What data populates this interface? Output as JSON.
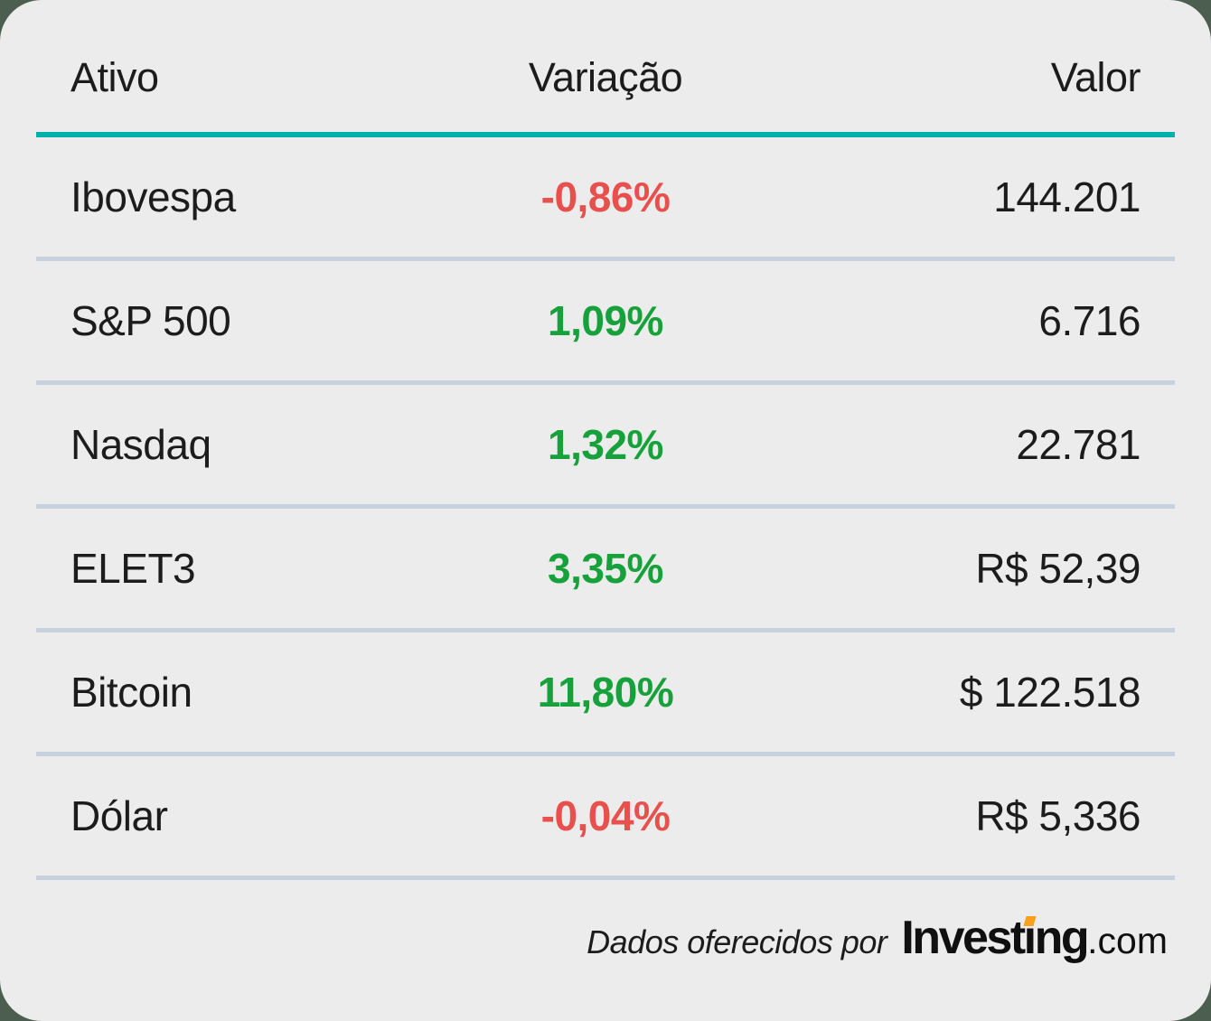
{
  "chart_data": {
    "type": "table",
    "columns": [
      "Ativo",
      "Variação",
      "Valor"
    ],
    "rows": [
      {
        "ativo": "Ibovespa",
        "variacao_label": "-0,86%",
        "variacao_pct": -0.86,
        "direction": "down",
        "valor_label": "144.201"
      },
      {
        "ativo": "S&P 500",
        "variacao_label": "1,09%",
        "variacao_pct": 1.09,
        "direction": "up",
        "valor_label": "6.716"
      },
      {
        "ativo": "Nasdaq",
        "variacao_label": "1,32%",
        "variacao_pct": 1.32,
        "direction": "up",
        "valor_label": "22.781"
      },
      {
        "ativo": "ELET3",
        "variacao_label": "3,35%",
        "variacao_pct": 3.35,
        "direction": "up",
        "valor_label": "R$ 52,39"
      },
      {
        "ativo": "Bitcoin",
        "variacao_label": "11,80%",
        "variacao_pct": 11.8,
        "direction": "up",
        "valor_label": "$ 122.518"
      },
      {
        "ativo": "Dólar",
        "variacao_label": "-0,04%",
        "variacao_pct": -0.04,
        "direction": "down",
        "valor_label": "R$ 5,336"
      }
    ],
    "layout": {
      "variation_column_alignment": "center",
      "value_column_alignment": "right",
      "grid": "horizontal-dividers"
    }
  },
  "footer": {
    "attribution_text": "Dados oferecidos por",
    "brand_prefix": "Invest",
    "brand_i": "ı",
    "brand_suffix": "ng",
    "brand_tld": ".com"
  },
  "colors": {
    "accent_teal": "#00B2A9",
    "positive_green": "#16A13B",
    "negative_red": "#E8504D",
    "divider": "#C8D1DE",
    "card_background": "#ECECEC",
    "page_background": "#4C5E4F",
    "logo_accent_orange": "#F9A11B",
    "text": "#1C1C1C"
  }
}
